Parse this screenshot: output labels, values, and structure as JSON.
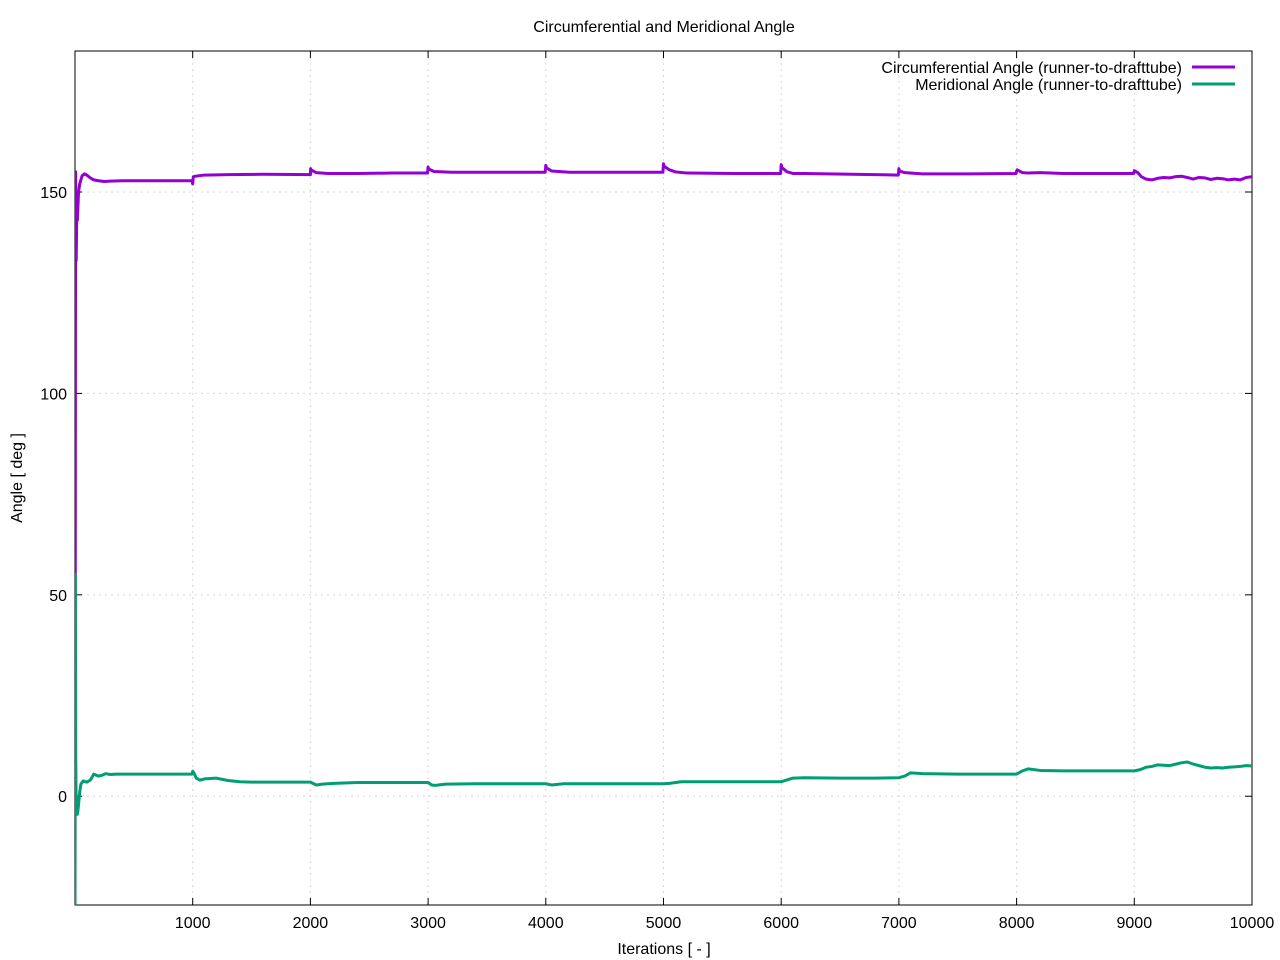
{
  "chart_data": {
    "type": "line",
    "title": "Circumferential and Meridional Angle",
    "xlabel": "Iterations [ - ]",
    "ylabel": "Angle [ deg ]",
    "xlim": [
      0,
      10000
    ],
    "ylim": [
      -27,
      185
    ],
    "xticks": [
      1000,
      2000,
      3000,
      4000,
      5000,
      6000,
      7000,
      8000,
      9000,
      10000
    ],
    "xtick_labels": [
      "1000",
      "2000",
      "3000",
      "4000",
      "5000",
      "6000",
      "7000",
      "8000",
      "9000",
      "10000"
    ],
    "yticks": [
      0,
      50,
      100,
      150
    ],
    "ytick_labels": [
      "0",
      "50",
      "100",
      "150"
    ],
    "grid": true,
    "legend_position": "top-right",
    "series": [
      {
        "name": "Circumferential Angle (runner-to-drafttube)",
        "color": "#9400d3",
        "x": [
          0,
          5,
          10,
          15,
          20,
          30,
          40,
          60,
          80,
          100,
          130,
          160,
          200,
          250,
          300,
          400,
          600,
          800,
          995,
          1000,
          1005,
          1020,
          1100,
          1300,
          1600,
          2000,
          2002,
          2005,
          2050,
          2150,
          2400,
          2700,
          2995,
          3000,
          3005,
          3050,
          3200,
          3600,
          3995,
          4000,
          4005,
          4050,
          4200,
          4600,
          4995,
          5000,
          5005,
          5050,
          5100,
          5200,
          5600,
          5995,
          6000,
          6005,
          6050,
          6100,
          6200,
          6600,
          6995,
          7000,
          7005,
          7050,
          7200,
          7600,
          7995,
          8000,
          8005,
          8050,
          8100,
          8200,
          8400,
          8700,
          8995,
          9000,
          9030,
          9060,
          9100,
          9150,
          9200,
          9250,
          9300,
          9350,
          9400,
          9450,
          9500,
          9550,
          9600,
          9650,
          9700,
          9750,
          9800,
          9850,
          9900,
          9950,
          10000
        ],
        "values": [
          -27,
          155,
          133,
          145,
          143,
          150,
          152,
          154,
          154.5,
          154.2,
          153.5,
          153,
          152.8,
          152.6,
          152.7,
          152.8,
          152.8,
          152.8,
          152.8,
          152,
          153.8,
          153.9,
          154.2,
          154.3,
          154.4,
          154.3,
          155.8,
          155.5,
          154.8,
          154.6,
          154.6,
          154.7,
          154.7,
          156.2,
          155.7,
          155.1,
          154.9,
          154.9,
          154.9,
          156.6,
          156.0,
          155.2,
          154.9,
          154.9,
          154.9,
          157.0,
          156.4,
          155.5,
          155.0,
          154.7,
          154.6,
          154.6,
          156.8,
          156.1,
          155.0,
          154.6,
          154.6,
          154.4,
          154.2,
          155.8,
          155.2,
          154.8,
          154.5,
          154.5,
          154.6,
          155.2,
          155.5,
          154.8,
          154.7,
          154.8,
          154.6,
          154.6,
          154.6,
          155.3,
          154.8,
          153.8,
          153.2,
          153.0,
          153.4,
          153.6,
          153.5,
          153.8,
          153.9,
          153.6,
          153.2,
          153.6,
          153.5,
          153.1,
          153.4,
          153.3,
          153.0,
          153.2,
          153.0,
          153.6,
          153.8
        ]
      },
      {
        "name": "Meridional Angle (runner-to-drafttube)",
        "color": "#009e73",
        "x": [
          0,
          3,
          6,
          10,
          15,
          20,
          25,
          30,
          40,
          50,
          70,
          100,
          130,
          160,
          200,
          230,
          260,
          300,
          350,
          400,
          500,
          700,
          995,
          1000,
          1010,
          1030,
          1060,
          1100,
          1200,
          1300,
          1400,
          1500,
          1700,
          2000,
          2050,
          2100,
          2200,
          2400,
          2700,
          3000,
          3030,
          3060,
          3150,
          3400,
          3700,
          4000,
          4050,
          4150,
          4500,
          5000,
          5050,
          5150,
          5300,
          5700,
          6000,
          6100,
          6200,
          6500,
          6800,
          7000,
          7050,
          7100,
          7200,
          7500,
          7800,
          8000,
          8050,
          8100,
          8200,
          8400,
          8700,
          9000,
          9050,
          9100,
          9150,
          9200,
          9300,
          9400,
          9450,
          9500,
          9550,
          9600,
          9650,
          9700,
          9750,
          9800,
          9850,
          9900,
          9950,
          10000
        ],
        "values": [
          -27,
          55,
          10,
          -2,
          -4,
          -4.5,
          -3.5,
          -2,
          1,
          3,
          3.8,
          3.5,
          4,
          5.5,
          5,
          5.2,
          5.6,
          5.4,
          5.5,
          5.5,
          5.5,
          5.5,
          5.5,
          6.2,
          5.8,
          4.5,
          4.0,
          4.3,
          4.5,
          3.9,
          3.6,
          3.5,
          3.5,
          3.5,
          2.8,
          3.0,
          3.2,
          3.4,
          3.4,
          3.4,
          2.8,
          2.7,
          3.0,
          3.1,
          3.1,
          3.1,
          2.8,
          3.1,
          3.1,
          3.1,
          3.2,
          3.6,
          3.6,
          3.6,
          3.6,
          4.5,
          4.6,
          4.5,
          4.5,
          4.6,
          5.0,
          5.8,
          5.6,
          5.5,
          5.5,
          5.5,
          6.3,
          6.8,
          6.4,
          6.3,
          6.3,
          6.3,
          6.6,
          7.2,
          7.4,
          7.8,
          7.6,
          8.3,
          8.5,
          8.0,
          7.6,
          7.2,
          7.0,
          7.1,
          7.0,
          7.2,
          7.3,
          7.4,
          7.6,
          7.5
        ]
      }
    ]
  }
}
